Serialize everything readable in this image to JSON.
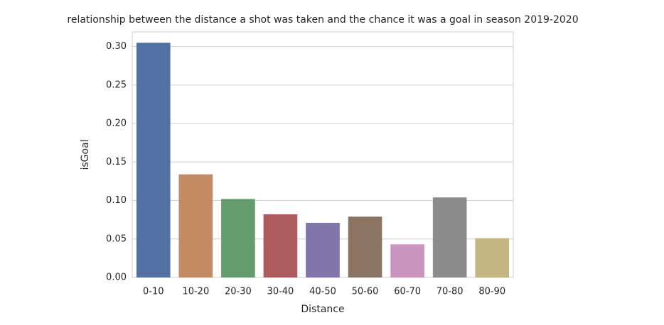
{
  "chart_data": {
    "type": "bar",
    "title": "relationship between the distance a shot was taken and the chance it was a goal in season 2019-2020",
    "x_label": "Distance",
    "y_label": "isGoal",
    "categories": [
      "0-10",
      "10-20",
      "20-30",
      "30-40",
      "40-50",
      "50-60",
      "60-70",
      "70-80",
      "80-90"
    ],
    "values": [
      0.305,
      0.134,
      0.102,
      0.082,
      0.071,
      0.079,
      0.043,
      0.104,
      0.051
    ],
    "colors": [
      "#5471a6",
      "#c38b63",
      "#659c6e",
      "#ad5b5c",
      "#8275aa",
      "#8c7462",
      "#c995c0",
      "#8c8c8c",
      "#c3b682"
    ],
    "ylim": [
      0,
      0.319
    ],
    "yticks": [
      {
        "value": 0,
        "label": "0.00"
      },
      {
        "value": 0.05,
        "label": "0.05"
      },
      {
        "value": 0.1,
        "label": "0.10"
      },
      {
        "value": 0.15,
        "label": "0.15"
      },
      {
        "value": 0.2,
        "label": "0.20"
      },
      {
        "value": 0.25,
        "label": "0.25"
      },
      {
        "value": 0.3,
        "label": "0.30"
      }
    ],
    "grid": true
  }
}
